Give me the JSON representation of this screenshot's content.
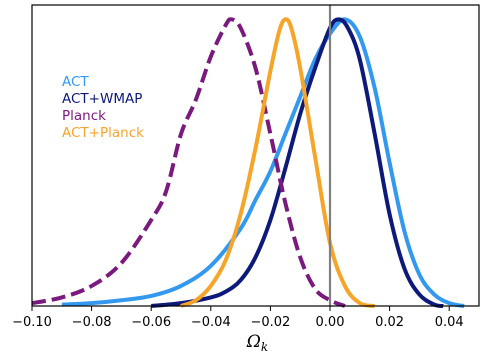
{
  "chart_data": {
    "type": "line",
    "title": "",
    "xlabel": "Ω_k",
    "xlabel_main": "Ω",
    "xlabel_sub": "k",
    "ylabel": "",
    "xlim": [
      -0.1,
      0.05
    ],
    "ylim": [
      0,
      1.05
    ],
    "xticks": [
      -0.1,
      -0.08,
      -0.06,
      -0.04,
      -0.02,
      0.0,
      0.02,
      0.04
    ],
    "xtick_labels": [
      "−0.10",
      "−0.08",
      "−0.06",
      "−0.04",
      "−0.02",
      "0.00",
      "0.02",
      "0.04"
    ],
    "grid": false,
    "legend_placement": "upper-left, unboxed, text colored by series",
    "reference_line": {
      "x": 0.0,
      "color": "#808080"
    },
    "series": [
      {
        "name": "ACT",
        "color": "#3399ee",
        "dash": "solid",
        "x": [
          -0.09,
          -0.08,
          -0.07,
          -0.06,
          -0.05,
          -0.04,
          -0.03,
          -0.025,
          -0.02,
          -0.015,
          -0.01,
          -0.005,
          0.0,
          0.005,
          0.01,
          0.015,
          0.02,
          0.025,
          0.03,
          0.035,
          0.04,
          0.045
        ],
        "y": [
          0.005,
          0.01,
          0.02,
          0.035,
          0.07,
          0.14,
          0.27,
          0.37,
          0.47,
          0.6,
          0.73,
          0.86,
          0.95,
          1.0,
          0.94,
          0.76,
          0.5,
          0.26,
          0.11,
          0.04,
          0.01,
          0.0
        ]
      },
      {
        "name": "ACT+WMAP",
        "color": "#0d1a7a",
        "dash": "solid",
        "x": [
          -0.06,
          -0.05,
          -0.04,
          -0.035,
          -0.03,
          -0.025,
          -0.02,
          -0.015,
          -0.01,
          -0.005,
          0.0,
          0.003,
          0.006,
          0.01,
          0.015,
          0.02,
          0.025,
          0.03,
          0.035,
          0.038
        ],
        "y": [
          0.0,
          0.01,
          0.03,
          0.05,
          0.09,
          0.17,
          0.3,
          0.48,
          0.67,
          0.83,
          0.97,
          1.0,
          0.97,
          0.86,
          0.6,
          0.32,
          0.13,
          0.04,
          0.005,
          0.0
        ]
      },
      {
        "name": "Planck",
        "color": "#7a1a7e",
        "dash": "dashed",
        "x": [
          -0.1,
          -0.09,
          -0.08,
          -0.07,
          -0.06,
          -0.055,
          -0.05,
          -0.045,
          -0.04,
          -0.035,
          -0.033,
          -0.03,
          -0.025,
          -0.02,
          -0.015,
          -0.01,
          -0.005,
          0.0,
          0.005
        ],
        "y": [
          0.01,
          0.03,
          0.07,
          0.15,
          0.3,
          0.4,
          0.6,
          0.72,
          0.87,
          0.98,
          1.0,
          0.97,
          0.83,
          0.6,
          0.36,
          0.17,
          0.06,
          0.02,
          0.0
        ]
      },
      {
        "name": "ACT+Planck",
        "color": "#f7a52a",
        "dash": "solid",
        "x": [
          -0.05,
          -0.045,
          -0.04,
          -0.035,
          -0.03,
          -0.025,
          -0.02,
          -0.017,
          -0.015,
          -0.013,
          -0.01,
          -0.005,
          0.0,
          0.005,
          0.01,
          0.015
        ],
        "y": [
          0.0,
          0.02,
          0.07,
          0.16,
          0.32,
          0.55,
          0.82,
          0.96,
          1.0,
          0.97,
          0.83,
          0.52,
          0.22,
          0.07,
          0.01,
          0.0
        ]
      }
    ]
  }
}
